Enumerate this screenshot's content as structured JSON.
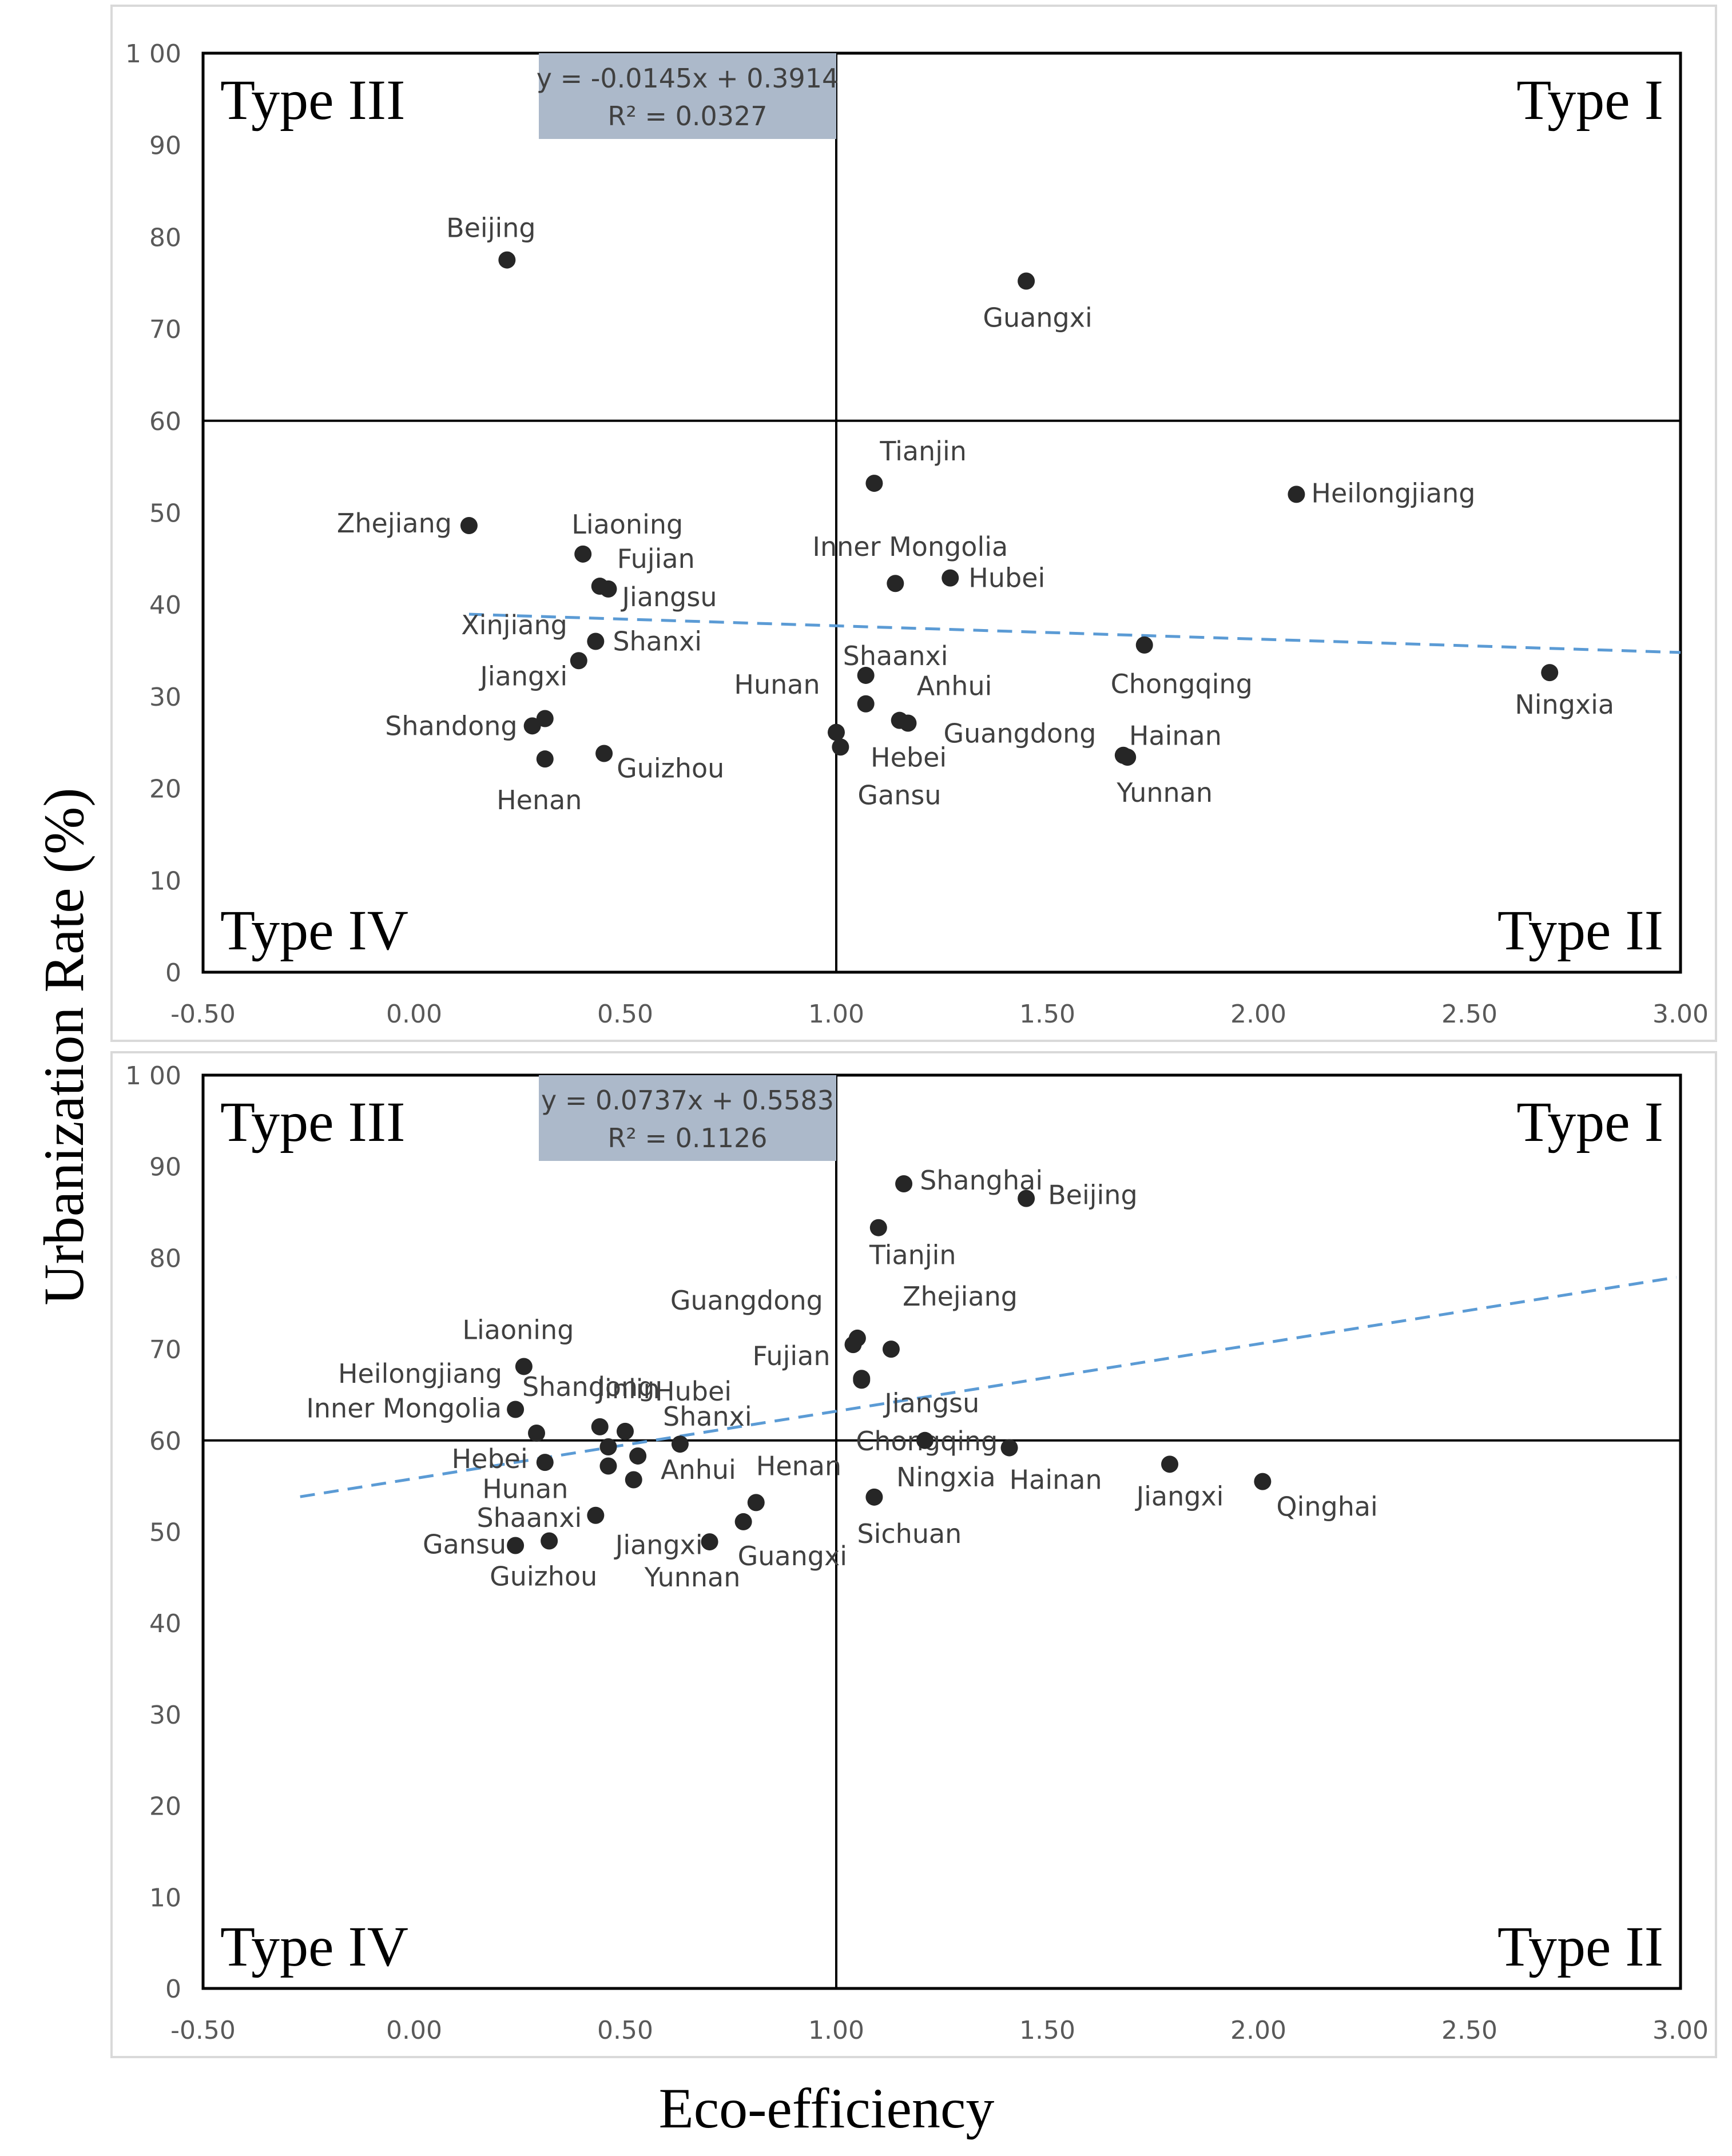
{
  "figure": {
    "xlabel": "Eco-efficiency",
    "ylabel": "Urbanization Rate (%)"
  },
  "chart_data": [
    {
      "type": "scatter",
      "panel": "top",
      "xlim": [
        -0.5,
        3.0
      ],
      "ylim": [
        0,
        100
      ],
      "xticks": [
        "-0.50",
        "0.00",
        "0.50",
        "1.00",
        "1.50",
        "2.00",
        "2.50",
        "3.00"
      ],
      "yticks": [
        "0",
        "10",
        "20",
        "30",
        "40",
        "50",
        "60",
        "70",
        "80",
        "90",
        "1 00"
      ],
      "quadrant_lines": {
        "x": 1.0,
        "y": 60
      },
      "quadrant_labels": {
        "top_left": "Type III",
        "top_right": "Type I",
        "bottom_left": "Type IV",
        "bottom_right": "Type II"
      },
      "trendline": {
        "equation": "y = -0.0145x + 0.3914",
        "r2": "R² = 0.0327",
        "x_range": [
          0.13,
          3.0
        ],
        "slope": -1.45,
        "intercept": 39.14
      },
      "points": [
        {
          "name": "Beijing",
          "x": 0.22,
          "y": 77.5
        },
        {
          "name": "Guangxi",
          "x": 1.45,
          "y": 75.2
        },
        {
          "name": "Tianjin",
          "x": 1.09,
          "y": 53.2
        },
        {
          "name": "Heilongjiang",
          "x": 2.09,
          "y": 52.0
        },
        {
          "name": "Zhejiang",
          "x": 0.13,
          "y": 48.6
        },
        {
          "name": "Liaoning",
          "x": 0.4,
          "y": 45.5
        },
        {
          "name": "Fujian",
          "x": 0.44,
          "y": 42.0
        },
        {
          "name": "Jiangsu",
          "x": 0.46,
          "y": 41.7
        },
        {
          "name": "Inner Mongolia",
          "x": 1.14,
          "y": 42.3
        },
        {
          "name": "Hubei",
          "x": 1.27,
          "y": 42.9
        },
        {
          "name": "Xinjiang",
          "x": 0.39,
          "y": 33.9
        },
        {
          "name": "Shanxi",
          "x": 0.43,
          "y": 36.0
        },
        {
          "name": "Chongqing",
          "x": 1.73,
          "y": 35.6
        },
        {
          "name": "Ningxia",
          "x": 2.69,
          "y": 32.6
        },
        {
          "name": "Shaanxi",
          "x": 1.07,
          "y": 32.3
        },
        {
          "name": "Jiangxi",
          "x": 0.31,
          "y": 27.6
        },
        {
          "name": "Hunan",
          "x": 1.07,
          "y": 29.2
        },
        {
          "name": "Anhui",
          "x": 1.15,
          "y": 27.4
        },
        {
          "name": "Shandong",
          "x": 0.28,
          "y": 26.8
        },
        {
          "name": "Guangdong",
          "x": 1.17,
          "y": 27.1
        },
        {
          "name": "Hebei",
          "x": 1.0,
          "y": 26.1
        },
        {
          "name": "Gansu",
          "x": 1.01,
          "y": 24.5
        },
        {
          "name": "Guizhou",
          "x": 0.45,
          "y": 23.8
        },
        {
          "name": "Henan",
          "x": 0.31,
          "y": 23.2
        },
        {
          "name": "Hainan",
          "x": 1.68,
          "y": 23.6
        },
        {
          "name": "Yunnan",
          "x": 1.69,
          "y": 23.4
        }
      ]
    },
    {
      "type": "scatter",
      "panel": "bottom",
      "xlim": [
        -0.5,
        3.0
      ],
      "ylim": [
        0,
        100
      ],
      "xticks": [
        "-0.50",
        "0.00",
        "0.50",
        "1.00",
        "1.50",
        "2.00",
        "2.50",
        "3.00"
      ],
      "yticks": [
        "0",
        "10",
        "20",
        "30",
        "40",
        "50",
        "60",
        "70",
        "80",
        "90",
        "1 00"
      ],
      "quadrant_lines": {
        "x": 1.0,
        "y": 60
      },
      "quadrant_labels": {
        "top_left": "Type III",
        "top_right": "Type I",
        "bottom_left": "Type IV",
        "bottom_right": "Type II"
      },
      "trendline": {
        "equation": "y = 0.0737x + 0.5583",
        "r2": "R² = 0.1126",
        "x_range": [
          -0.27,
          2.99
        ],
        "slope": 7.37,
        "intercept": 55.83
      },
      "points": [
        {
          "name": "Shanghai",
          "x": 1.16,
          "y": 88.1
        },
        {
          "name": "Beijing",
          "x": 1.45,
          "y": 86.5
        },
        {
          "name": "Tianjin",
          "x": 1.1,
          "y": 83.3
        },
        {
          "name": "Zhejiang",
          "x": 1.13,
          "y": 70.0
        },
        {
          "name": "Guangdong",
          "x": 1.05,
          "y": 71.2
        },
        {
          "name": "Fujian",
          "x": 1.04,
          "y": 70.5
        },
        {
          "name": "Jiangsu",
          "x": 1.06,
          "y": 66.6
        },
        {
          "name": "Chongqing",
          "x": 1.06,
          "y": 66.8
        },
        {
          "name": "Liaoning",
          "x": 0.26,
          "y": 68.1
        },
        {
          "name": "Heilongjiang",
          "x": 0.29,
          "y": 60.8
        },
        {
          "name": "Inner Mongolia",
          "x": 0.24,
          "y": 63.4
        },
        {
          "name": "Shandong",
          "x": 0.44,
          "y": 61.5
        },
        {
          "name": "Jinlin",
          "x": 0.46,
          "y": 59.3
        },
        {
          "name": "Hubei",
          "x": 0.5,
          "y": 61.0
        },
        {
          "name": "Shanxi",
          "x": 0.63,
          "y": 59.6
        },
        {
          "name": "Hebei",
          "x": 0.31,
          "y": 57.6
        },
        {
          "name": "Hunan",
          "x": 0.46,
          "y": 57.2
        },
        {
          "name": "Anhui",
          "x": 0.53,
          "y": 58.3
        },
        {
          "name": "Jiangxi",
          "x": 0.52,
          "y": 55.7
        },
        {
          "name": "Shaanxi",
          "x": 0.43,
          "y": 51.8
        },
        {
          "name": "Gansu",
          "x": 0.24,
          "y": 48.5
        },
        {
          "name": "Guizhou",
          "x": 0.32,
          "y": 49.0
        },
        {
          "name": "Yunnan",
          "x": 0.7,
          "y": 48.9
        },
        {
          "name": "Guangxi",
          "x": 0.78,
          "y": 51.1
        },
        {
          "name": "Henan",
          "x": 0.81,
          "y": 53.2
        },
        {
          "name": "Ningxia",
          "x": 1.21,
          "y": 60.0
        },
        {
          "name": "Hainan",
          "x": 1.41,
          "y": 59.2
        },
        {
          "name": "Sichuan",
          "x": 1.09,
          "y": 53.8
        },
        {
          "name": "Jiangxi",
          "x": 1.79,
          "y": 57.4
        },
        {
          "name": "Qinghai",
          "x": 2.01,
          "y": 55.5
        }
      ]
    }
  ]
}
